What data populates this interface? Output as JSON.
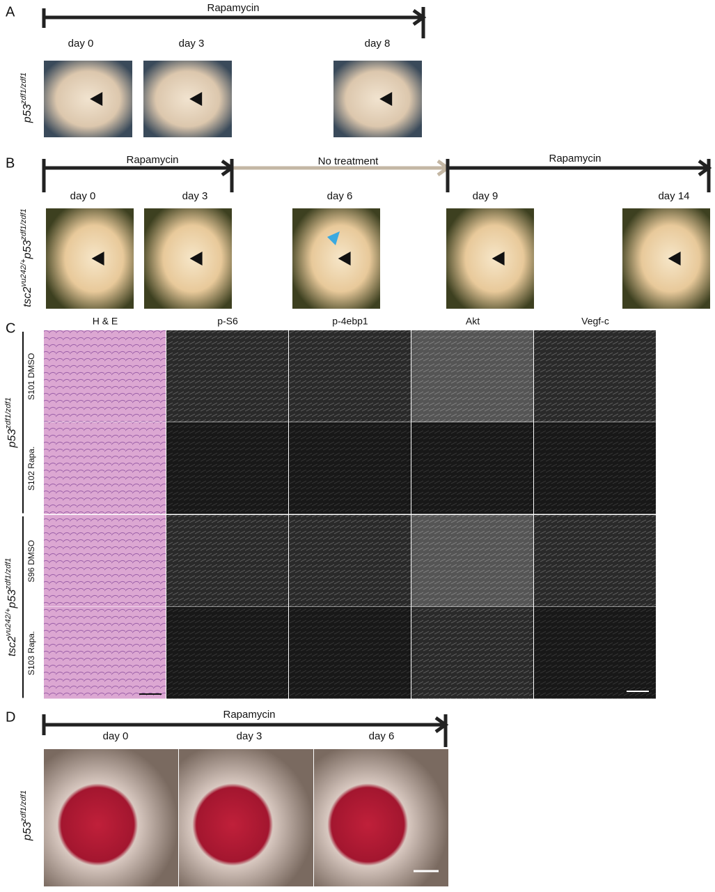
{
  "panel_a": {
    "letter": "A",
    "treatments": [
      "Rapamycin"
    ],
    "days": [
      "day 0",
      "day 3",
      "day 8"
    ],
    "genotype": [
      {
        "text": "p53",
        "style": "normal"
      },
      {
        "text": "zdf1/zdf1",
        "style": "sup"
      }
    ]
  },
  "panel_b": {
    "letter": "B",
    "treatments": [
      "Rapamycin",
      "No treatment",
      "Rapamycin"
    ],
    "days": [
      "day 0",
      "day 3",
      "day 6",
      "day 9",
      "day 14"
    ],
    "genotype": [
      {
        "text": "tsc2",
        "style": "normal"
      },
      {
        "text": "vu242/+",
        "style": "sup"
      },
      {
        "text": "p53",
        "style": "normal"
      },
      {
        "text": "zdf1/zdf1",
        "style": "sup"
      }
    ]
  },
  "panel_c": {
    "letter": "C",
    "columns": [
      "H & E",
      "p-S6",
      "p-4ebp1",
      "Akt",
      "Vegf-c"
    ],
    "groups": [
      {
        "genotype": [
          {
            "text": "p53",
            "style": "normal"
          },
          {
            "text": "zdf1/zdf1",
            "style": "sup"
          }
        ],
        "rows": [
          "S101 DMSO",
          "S102 Rapa."
        ]
      },
      {
        "genotype": [
          {
            "text": "tsc2",
            "style": "normal"
          },
          {
            "text": "vu242/+",
            "style": "sup"
          },
          {
            "text": "p53",
            "style": "normal"
          },
          {
            "text": "zdf1/zdf1",
            "style": "sup"
          }
        ],
        "rows": [
          "S96 DMSO",
          "S103 Rapa."
        ]
      }
    ]
  },
  "panel_d": {
    "letter": "D",
    "treatments": [
      "Rapamycin"
    ],
    "days": [
      "day 0",
      "day 3",
      "day 6"
    ],
    "genotype": [
      {
        "text": "p53",
        "style": "normal"
      },
      {
        "text": "zdf1/zdf1",
        "style": "sup"
      }
    ]
  }
}
